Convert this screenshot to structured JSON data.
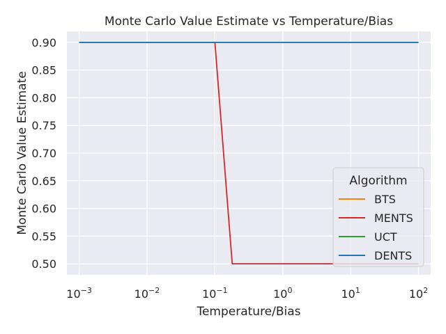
{
  "chart_data": {
    "type": "line",
    "title": "Monte Carlo Value Estimate vs Temperature/Bias",
    "xlabel": "Temperature/Bias",
    "ylabel": "Monte Carlo Value Estimate",
    "xscale": "log",
    "xlim": [
      0.00066,
      151
    ],
    "ylim": [
      0.48,
      0.92
    ],
    "grid": true,
    "x_ticks": [
      {
        "value": 0.001,
        "base": "10",
        "exp": "−3"
      },
      {
        "value": 0.01,
        "base": "10",
        "exp": "−2"
      },
      {
        "value": 0.1,
        "base": "10",
        "exp": "−1"
      },
      {
        "value": 1,
        "base": "10",
        "exp": "0"
      },
      {
        "value": 10,
        "base": "10",
        "exp": "1"
      },
      {
        "value": 100,
        "base": "10",
        "exp": "2"
      }
    ],
    "y_ticks": [
      "0.50",
      "0.55",
      "0.60",
      "0.65",
      "0.70",
      "0.75",
      "0.80",
      "0.85",
      "0.90"
    ],
    "legend": {
      "title": "Algorithm",
      "placement": "lower-right"
    },
    "series": [
      {
        "name": "BTS",
        "color": "#ff7f0e",
        "x": [
          0.001,
          100
        ],
        "y": [
          0.9,
          0.9
        ]
      },
      {
        "name": "MENTS",
        "color": "#d62728",
        "x": [
          0.001,
          0.1,
          0.18,
          100
        ],
        "y": [
          0.9,
          0.9,
          0.5,
          0.5
        ]
      },
      {
        "name": "UCT",
        "color": "#2ca02c",
        "x": [
          0.001,
          100
        ],
        "y": [
          0.9,
          0.9
        ]
      },
      {
        "name": "DENTS",
        "color": "#1f77b4",
        "x": [
          0.001,
          100
        ],
        "y": [
          0.9,
          0.9
        ]
      }
    ]
  }
}
